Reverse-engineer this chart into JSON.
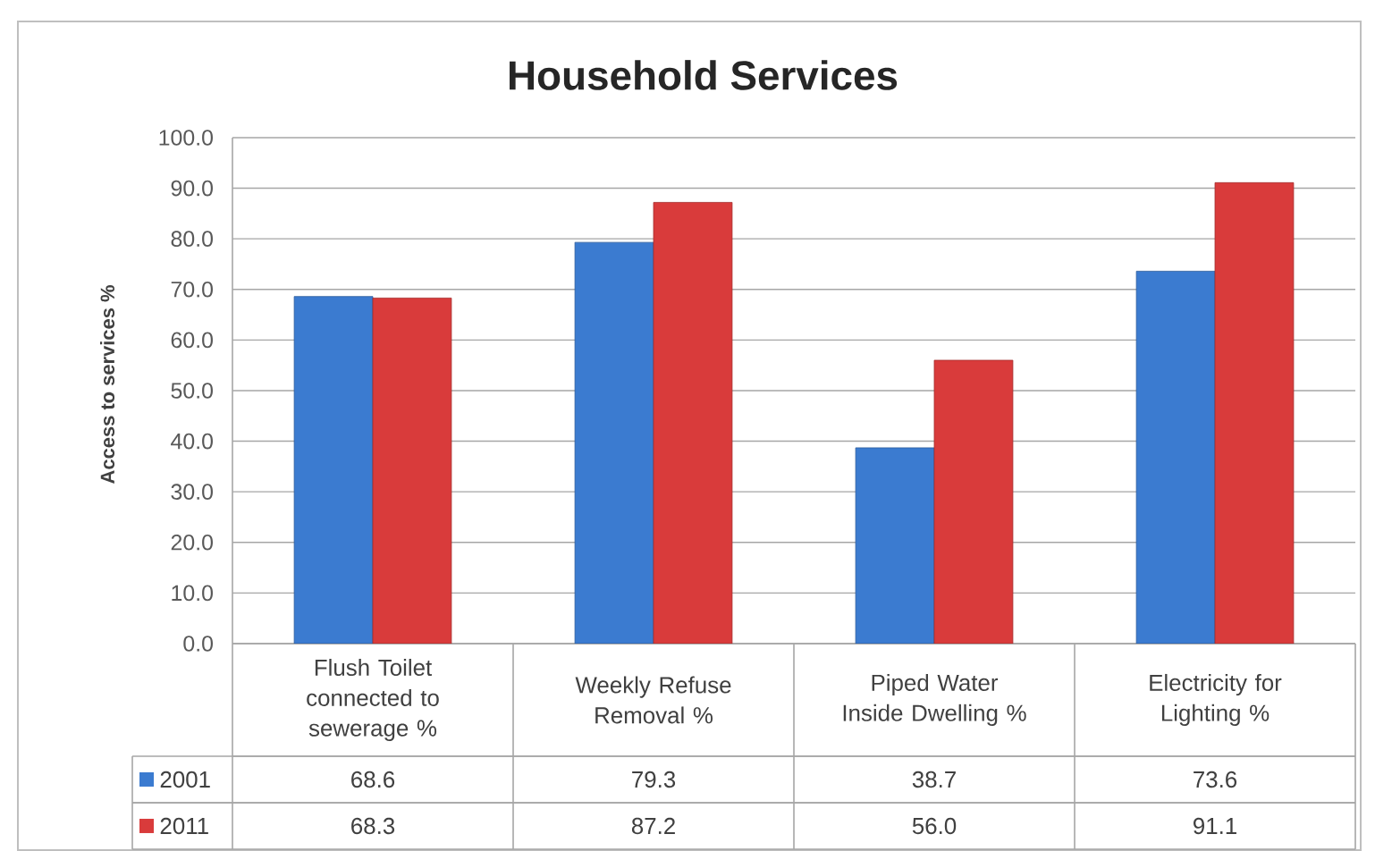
{
  "chart_data": {
    "type": "bar",
    "title": "Household Services",
    "ylabel": "Access to services %",
    "categories": [
      "Flush Toilet connected to sewerage %",
      "Weekly Refuse Removal %",
      "Piped Water Inside Dwelling %",
      "Electricity for Lighting %"
    ],
    "series": [
      {
        "name": "2001",
        "color": "#3b7bd0",
        "values": [
          68.6,
          79.3,
          38.7,
          73.6
        ],
        "value_labels": [
          "68.6",
          "79.3",
          "38.7",
          "73.6"
        ]
      },
      {
        "name": "2011",
        "color": "#d93b3b",
        "values": [
          68.3,
          87.2,
          56.0,
          91.1
        ],
        "value_labels": [
          "68.3",
          "87.2",
          "56.0",
          "91.1"
        ]
      }
    ],
    "ylim": [
      0,
      100
    ],
    "yticks": [
      {
        "value": 0,
        "label": "0.0"
      },
      {
        "value": 10,
        "label": "10.0"
      },
      {
        "value": 20,
        "label": "20.0"
      },
      {
        "value": 30,
        "label": "30.0"
      },
      {
        "value": 40,
        "label": "40.0"
      },
      {
        "value": 50,
        "label": "50.0"
      },
      {
        "value": 60,
        "label": "60.0"
      },
      {
        "value": 70,
        "label": "70.0"
      },
      {
        "value": 80,
        "label": "80.0"
      },
      {
        "value": 90,
        "label": "90.0"
      },
      {
        "value": 100,
        "label": "100.0"
      }
    ],
    "grid": "y",
    "legend": "bottom"
  }
}
